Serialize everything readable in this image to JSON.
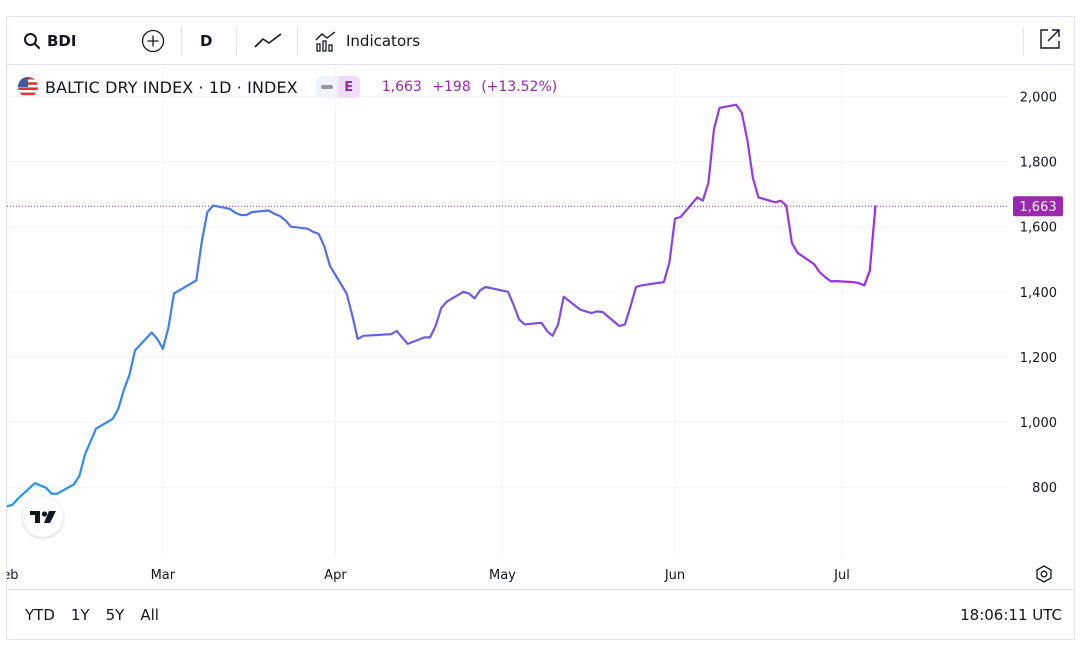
{
  "toolbar": {
    "symbol": "BDI",
    "interval": "D",
    "indicators_label": "Indicators"
  },
  "legend": {
    "title": "BALTIC DRY INDEX · 1D · INDEX",
    "badge": "E",
    "last": "1,663",
    "change": "+198",
    "change_pct": "(+13.52%)"
  },
  "price_tag": "1,663",
  "bottom": {
    "ranges": [
      "YTD",
      "1Y",
      "5Y",
      "All"
    ],
    "time": "18:06:11 UTC"
  },
  "colors": {
    "line_start": "#2196f3",
    "line_mid": "#7b52e0",
    "line_end": "#b21ef0",
    "accent": "#9c27b0"
  },
  "chart_data": {
    "type": "line",
    "title": "",
    "xlabel": "",
    "ylabel": "",
    "ylim": [
      610,
      2060
    ],
    "yticks": [
      800,
      1000,
      1200,
      1400,
      1600,
      1800,
      2000
    ],
    "ytick_labels": [
      "800",
      "1,000",
      "1,200",
      "1,400",
      "1,600",
      "1,800",
      "2,000"
    ],
    "x_start": "2023-02-01",
    "x_end": "2023-07-31",
    "month_ticks": [
      {
        "label": "Feb",
        "date": "2023-02-01"
      },
      {
        "label": "Mar",
        "date": "2023-03-01"
      },
      {
        "label": "Apr",
        "date": "2023-04-01"
      },
      {
        "label": "May",
        "date": "2023-05-01"
      },
      {
        "label": "Jun",
        "date": "2023-06-01"
      },
      {
        "label": "Jul",
        "date": "2023-07-01"
      }
    ],
    "last_value": 1663,
    "series": [
      {
        "values": [
          [
            "2023-02-01",
            741
          ],
          [
            "2023-02-02",
            746
          ],
          [
            "2023-02-03",
            765
          ],
          [
            "2023-02-06",
            812
          ],
          [
            "2023-02-07",
            805
          ],
          [
            "2023-02-08",
            798
          ],
          [
            "2023-02-09",
            780
          ],
          [
            "2023-02-10",
            780
          ],
          [
            "2023-02-13",
            808
          ],
          [
            "2023-02-14",
            835
          ],
          [
            "2023-02-15",
            900
          ],
          [
            "2023-02-16",
            940
          ],
          [
            "2023-02-17",
            980
          ],
          [
            "2023-02-20",
            1010
          ],
          [
            "2023-02-21",
            1040
          ],
          [
            "2023-02-22",
            1100
          ],
          [
            "2023-02-23",
            1145
          ],
          [
            "2023-02-24",
            1220
          ],
          [
            "2023-02-27",
            1275
          ],
          [
            "2023-02-28",
            1255
          ],
          [
            "2023-03-01",
            1225
          ],
          [
            "2023-03-02",
            1290
          ],
          [
            "2023-03-03",
            1395
          ],
          [
            "2023-03-06",
            1425
          ],
          [
            "2023-03-07",
            1435
          ],
          [
            "2023-03-08",
            1555
          ],
          [
            "2023-03-09",
            1645
          ],
          [
            "2023-03-10",
            1665
          ],
          [
            "2023-03-13",
            1655
          ],
          [
            "2023-03-14",
            1643
          ],
          [
            "2023-03-15",
            1636
          ],
          [
            "2023-03-16",
            1636
          ],
          [
            "2023-03-17",
            1645
          ],
          [
            "2023-03-20",
            1650
          ],
          [
            "2023-03-21",
            1640
          ],
          [
            "2023-03-22",
            1633
          ],
          [
            "2023-03-23",
            1620
          ],
          [
            "2023-03-24",
            1600
          ],
          [
            "2023-03-27",
            1594
          ],
          [
            "2023-03-28",
            1584
          ],
          [
            "2023-03-29",
            1578
          ],
          [
            "2023-03-30",
            1540
          ],
          [
            "2023-03-31",
            1480
          ],
          [
            "2023-04-03",
            1395
          ],
          [
            "2023-04-04",
            1330
          ],
          [
            "2023-04-05",
            1255
          ],
          [
            "2023-04-06",
            1265
          ],
          [
            "2023-04-11",
            1270
          ],
          [
            "2023-04-12",
            1280
          ],
          [
            "2023-04-13",
            1260
          ],
          [
            "2023-04-14",
            1240
          ],
          [
            "2023-04-17",
            1260
          ],
          [
            "2023-04-18",
            1260
          ],
          [
            "2023-04-19",
            1295
          ],
          [
            "2023-04-20",
            1350
          ],
          [
            "2023-04-21",
            1370
          ],
          [
            "2023-04-24",
            1400
          ],
          [
            "2023-04-25",
            1395
          ],
          [
            "2023-04-26",
            1380
          ],
          [
            "2023-04-27",
            1405
          ],
          [
            "2023-04-28",
            1415
          ],
          [
            "2023-05-02",
            1400
          ],
          [
            "2023-05-03",
            1360
          ],
          [
            "2023-05-04",
            1315
          ],
          [
            "2023-05-05",
            1300
          ],
          [
            "2023-05-08",
            1305
          ],
          [
            "2023-05-09",
            1280
          ],
          [
            "2023-05-10",
            1265
          ],
          [
            "2023-05-11",
            1300
          ],
          [
            "2023-05-12",
            1385
          ],
          [
            "2023-05-15",
            1345
          ],
          [
            "2023-05-16",
            1340
          ],
          [
            "2023-05-17",
            1335
          ],
          [
            "2023-05-18",
            1340
          ],
          [
            "2023-05-19",
            1338
          ],
          [
            "2023-05-22",
            1295
          ],
          [
            "2023-05-23",
            1300
          ],
          [
            "2023-05-24",
            1355
          ],
          [
            "2023-05-25",
            1415
          ],
          [
            "2023-05-26",
            1420
          ],
          [
            "2023-05-30",
            1430
          ],
          [
            "2023-05-31",
            1490
          ],
          [
            "2023-06-01",
            1625
          ],
          [
            "2023-06-02",
            1630
          ],
          [
            "2023-06-05",
            1690
          ],
          [
            "2023-06-06",
            1680
          ],
          [
            "2023-06-07",
            1735
          ],
          [
            "2023-06-08",
            1900
          ],
          [
            "2023-06-09",
            1965
          ],
          [
            "2023-06-12",
            1975
          ],
          [
            "2023-06-13",
            1950
          ],
          [
            "2023-06-14",
            1865
          ],
          [
            "2023-06-15",
            1750
          ],
          [
            "2023-06-16",
            1690
          ],
          [
            "2023-06-19",
            1675
          ],
          [
            "2023-06-20",
            1680
          ],
          [
            "2023-06-21",
            1665
          ],
          [
            "2023-06-22",
            1550
          ],
          [
            "2023-06-23",
            1520
          ],
          [
            "2023-06-26",
            1485
          ],
          [
            "2023-06-27",
            1460
          ],
          [
            "2023-06-28",
            1445
          ],
          [
            "2023-06-29",
            1432
          ],
          [
            "2023-06-30",
            1433
          ],
          [
            "2023-07-03",
            1430
          ],
          [
            "2023-07-04",
            1427
          ],
          [
            "2023-07-05",
            1420
          ],
          [
            "2023-07-06",
            1465
          ],
          [
            "2023-07-07",
            1663
          ]
        ]
      }
    ]
  }
}
